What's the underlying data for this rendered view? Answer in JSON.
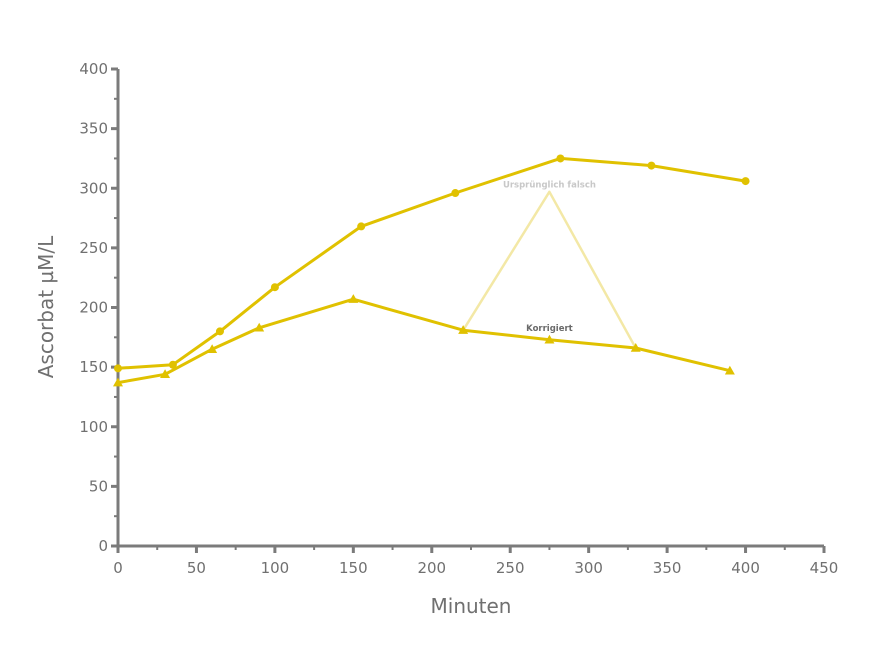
{
  "chart_data": {
    "type": "line",
    "xlabel": "Minuten",
    "ylabel": "Ascorbat µM/L",
    "xlim": [
      0,
      450
    ],
    "ylim": [
      0,
      400
    ],
    "xticks": [
      0,
      50,
      100,
      150,
      200,
      250,
      300,
      350,
      400,
      450
    ],
    "yticks": [
      0,
      50,
      100,
      150,
      200,
      250,
      300,
      350,
      400
    ],
    "grid": false,
    "series": [
      {
        "marker": "circle",
        "color": "#e0c100",
        "x": [
          0,
          35,
          65,
          100,
          155,
          215,
          282,
          340,
          400
        ],
        "y": [
          149,
          152,
          180,
          217,
          268,
          296,
          325,
          319,
          306
        ]
      },
      {
        "marker": "triangle",
        "color": "#e0c100",
        "x": [
          0,
          30,
          60,
          90,
          150,
          220,
          275,
          330,
          390
        ],
        "y": [
          137,
          144,
          165,
          183,
          207,
          181,
          173,
          166,
          147
        ]
      },
      {
        "marker": "none",
        "color": "#f3e8a6",
        "x": [
          220,
          275,
          330
        ],
        "y": [
          181,
          297,
          166
        ]
      }
    ],
    "annotations": [
      {
        "text": "Ursprünglich falsch",
        "x": 275,
        "y": 303,
        "color": "#c8c8c8"
      },
      {
        "text": "Korrigiert",
        "x": 275,
        "y": 183,
        "color": "#6a6a6a"
      }
    ]
  }
}
